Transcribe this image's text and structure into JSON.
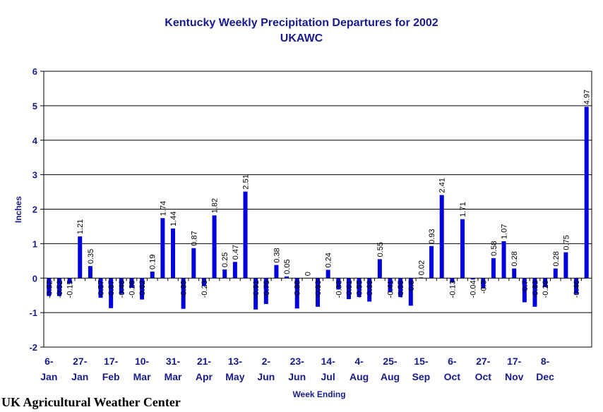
{
  "chart_data": {
    "type": "bar",
    "title": "Kentucky Weekly Precipitation Departures for 2002",
    "subtitle": "UKAWC",
    "xlabel": "Week Ending",
    "ylabel": "Inches",
    "ylim": [
      -2,
      6
    ],
    "yticks": [
      -2,
      -1,
      0,
      1,
      2,
      3,
      4,
      5,
      6
    ],
    "grid": true,
    "bar_color": "#0000dd",
    "tick_labels": [
      [
        "6-",
        "Jan"
      ],
      [
        "27-",
        "Jan"
      ],
      [
        "17-",
        "Feb"
      ],
      [
        "10-",
        "Mar"
      ],
      [
        "31-",
        "Mar"
      ],
      [
        "21-",
        "Apr"
      ],
      [
        "13-",
        "May"
      ],
      [
        "2-",
        "Jun"
      ],
      [
        "23-",
        "Jun"
      ],
      [
        "14-",
        "Jul"
      ],
      [
        "4-",
        "Aug"
      ],
      [
        "25-",
        "Aug"
      ],
      [
        "15-",
        "Sep"
      ],
      [
        "6-",
        "Oct"
      ],
      [
        "27-",
        "Oct"
      ],
      [
        "17-",
        "Nov"
      ],
      [
        "8-",
        "Dec"
      ]
    ],
    "values": [
      -0.52,
      -0.52,
      -0.15,
      1.21,
      0.35,
      -0.57,
      -0.87,
      -0.46,
      -0.28,
      -0.62,
      0.19,
      1.74,
      1.44,
      -0.89,
      0.87,
      -0.23,
      1.82,
      0.25,
      0.47,
      2.51,
      -0.91,
      -0.75,
      0.38,
      0.05,
      -0.88,
      0,
      -0.83,
      0.24,
      -0.33,
      -0.61,
      -0.55,
      -0.68,
      0.55,
      -0.41,
      -0.55,
      -0.8,
      0.02,
      0.93,
      2.41,
      -0.13,
      1.71,
      -0.04,
      -0.3,
      0.58,
      1.07,
      0.28,
      -0.7,
      -0.83,
      -0.26,
      0.28,
      0.75,
      -0.46,
      4.97
    ]
  },
  "footer": {
    "credit": "UK Agricultural Weather Center"
  }
}
